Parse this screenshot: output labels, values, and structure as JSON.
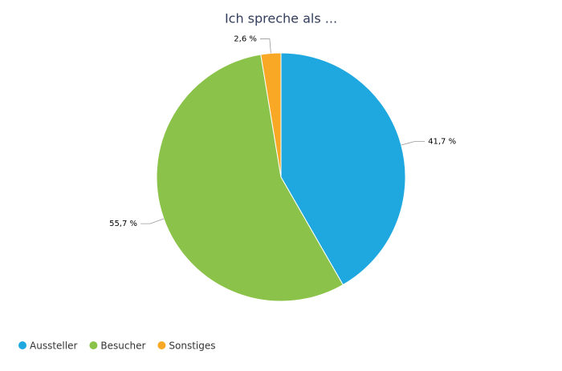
{
  "chart_data": {
    "type": "pie",
    "title": "Ich spreche als ...",
    "categories": [
      "Aussteller",
      "Besucher",
      "Sonstiges"
    ],
    "values": [
      41.7,
      55.7,
      2.6
    ],
    "value_labels": [
      "41,7 %",
      "55,7 %",
      "2,6 %"
    ],
    "colors": [
      "#1fa8e0",
      "#8bc34a",
      "#f9a825"
    ]
  }
}
